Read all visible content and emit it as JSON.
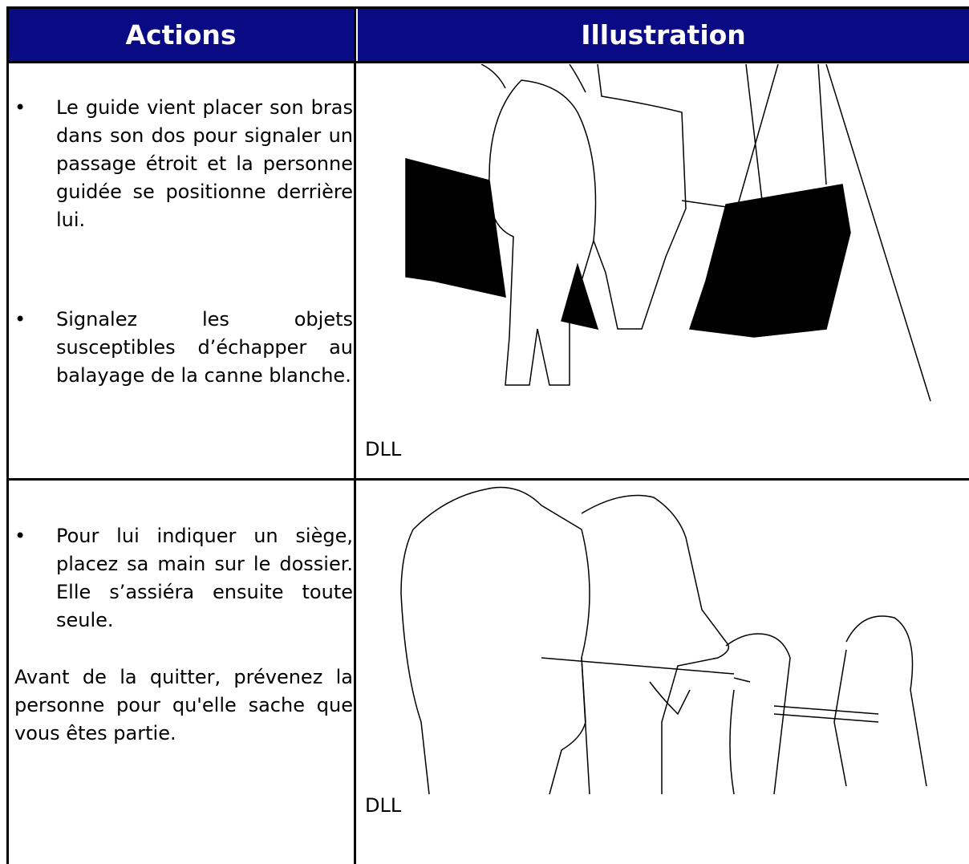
{
  "table": {
    "headers": [
      "Actions",
      "Illustration"
    ],
    "rows": [
      {
        "actions": [
          {
            "bullet": true,
            "text": "Le guide vient placer son bras dans son dos pour signaler un passage étroit et la personne guidée se positionne derrière lui."
          },
          {
            "bullet": true,
            "text": "Signalez les objets susceptibles d’échapper au balayage de la canne blanche."
          }
        ],
        "caption": "DLL"
      },
      {
        "actions": [
          {
            "bullet": true,
            "text": "Pour lui indiquer un siège, placez sa main sur le dossier. Elle s’assiéra ensuite toute seule."
          },
          {
            "bullet": false,
            "text": "Avant de la quitter, prévenez la personne pour qu'elle sache que vous êtes partie."
          }
        ],
        "caption": "DLL"
      }
    ]
  }
}
